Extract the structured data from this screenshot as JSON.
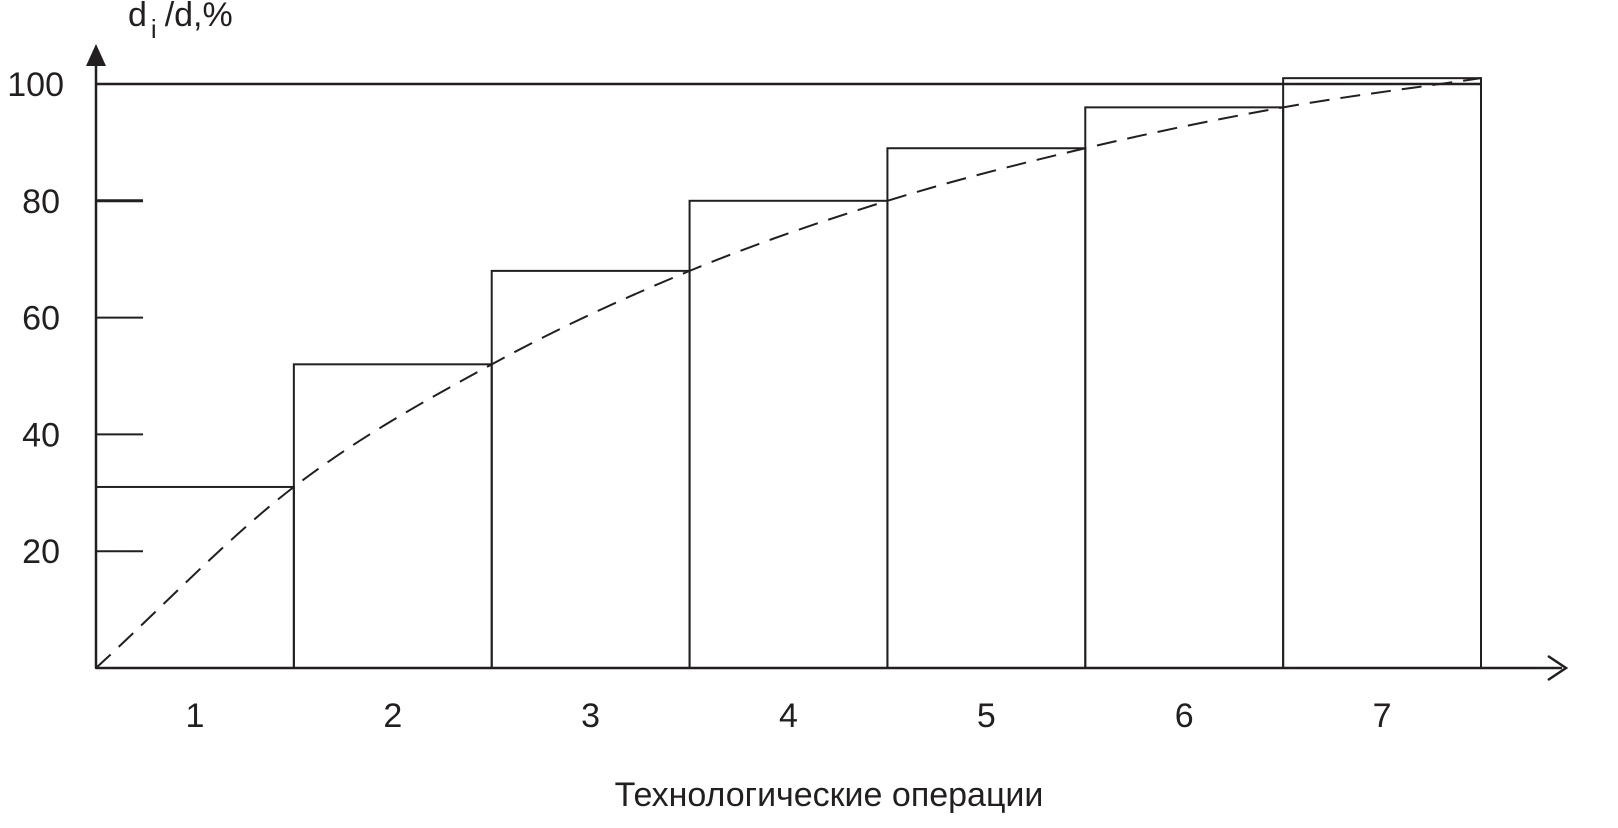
{
  "chart_data": {
    "type": "bar",
    "categories": [
      "1",
      "2",
      "3",
      "4",
      "5",
      "6",
      "7"
    ],
    "values": [
      31,
      52,
      68,
      80,
      89,
      96,
      101
    ],
    "curve": {
      "style": "dashed",
      "x": [
        0,
        1,
        2,
        3,
        4,
        5,
        6,
        7
      ],
      "y": [
        0,
        31,
        52,
        68,
        80,
        89,
        96,
        101
      ]
    },
    "xlabel": "Технологические операции",
    "ylabel": {
      "main": "d",
      "subscript": "i",
      "rest": "/d,%"
    },
    "yticks": [
      "20",
      "40",
      "60",
      "80",
      "100"
    ],
    "ylim": [
      0,
      100
    ],
    "grid": false,
    "legend": "none",
    "colors": {
      "line": "#231f20",
      "background": "#ffffff"
    }
  }
}
